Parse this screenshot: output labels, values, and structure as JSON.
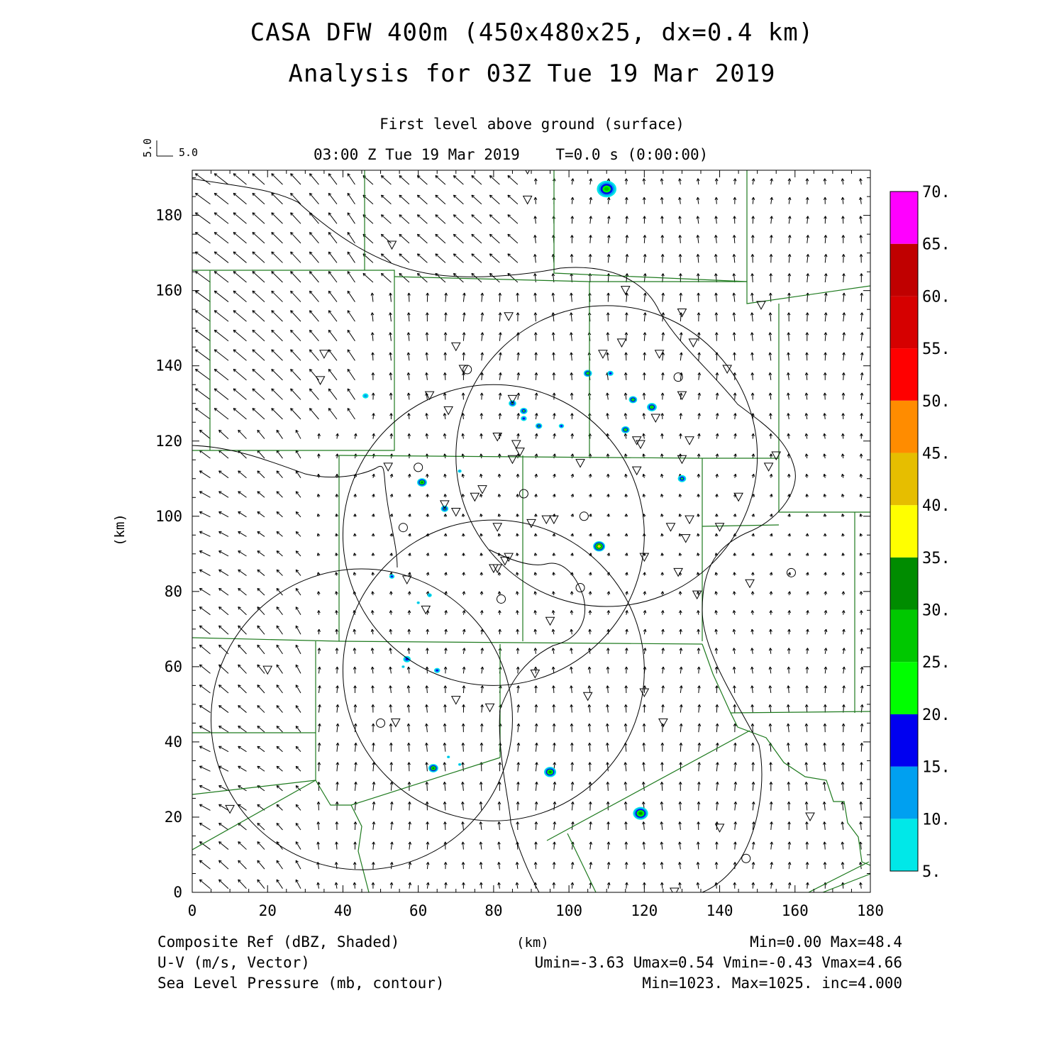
{
  "title": {
    "line1": "CASA DFW 400m (450x480x25, dx=0.4 km)",
    "line2": "Analysis for 03Z Tue 19 Mar 2019"
  },
  "subtitle": "First level above ground (surface)",
  "time_line": "03:00 Z Tue 19 Mar 2019    T=0.0 s (0:00:00)",
  "vector_key": {
    "u_label": "5.0",
    "v_label": "5.0"
  },
  "axes": {
    "x_label": "(km)",
    "y_label": "(km)",
    "x_ticks": [
      "0",
      "20",
      "40",
      "60",
      "80",
      "100",
      "120",
      "140",
      "160",
      "180"
    ],
    "y_ticks": [
      "0",
      "20",
      "40",
      "60",
      "80",
      "100",
      "120",
      "140",
      "160",
      "180"
    ],
    "x_range_km": [
      0,
      180
    ],
    "y_range_km": [
      0,
      192
    ]
  },
  "colorbar": {
    "labels": [
      "5.",
      "10.",
      "15.",
      "20.",
      "25.",
      "30.",
      "35.",
      "40.",
      "45.",
      "50.",
      "55.",
      "60.",
      "65.",
      "70."
    ],
    "colors": [
      "#00e8e8",
      "#00a0f0",
      "#0000f0",
      "#00ff00",
      "#00c800",
      "#008c00",
      "#ffff00",
      "#e6be00",
      "#ff8c00",
      "#ff0000",
      "#d60000",
      "#c00000",
      "#ff00ff"
    ]
  },
  "footer": {
    "left": [
      "Composite Ref (dBZ, Shaded)",
      "U-V (m/s, Vector)",
      "Sea Level Pressure (mb, contour)"
    ],
    "center": "(km)",
    "right": [
      "Min=0.00 Max=48.4",
      "Umin=-3.63 Umax=0.54 Vmin=-0.43 Vmax=4.66",
      "Min=1023. Max=1025. inc=4.000"
    ]
  },
  "colors": {
    "county_lines": "#1e7a1e",
    "contours": "#000000",
    "vectors": "#000000"
  },
  "map_data": {
    "radar_rings": [
      {
        "cx": 110,
        "cy": 116,
        "r": 40
      },
      {
        "cx": 80,
        "cy": 95,
        "r": 40
      },
      {
        "cx": 80,
        "cy": 59,
        "r": 40
      },
      {
        "cx": 45,
        "cy": 46,
        "r": 40
      }
    ],
    "stations_triangle": [
      [
        89,
        192
      ],
      [
        89,
        184
      ],
      [
        53,
        172
      ],
      [
        115,
        160
      ],
      [
        84,
        153
      ],
      [
        130,
        154
      ],
      [
        151,
        156
      ],
      [
        35,
        143
      ],
      [
        70,
        145
      ],
      [
        114,
        146
      ],
      [
        109,
        143
      ],
      [
        124,
        143
      ],
      [
        133,
        146
      ],
      [
        34,
        136
      ],
      [
        72,
        139
      ],
      [
        142,
        139
      ],
      [
        63,
        132
      ],
      [
        85,
        131
      ],
      [
        130,
        132
      ],
      [
        68,
        128
      ],
      [
        123,
        126
      ],
      [
        81,
        121
      ],
      [
        86,
        119
      ],
      [
        87,
        117
      ],
      [
        118,
        120
      ],
      [
        132,
        120
      ],
      [
        119,
        119
      ],
      [
        85,
        115
      ],
      [
        52,
        113
      ],
      [
        103,
        114
      ],
      [
        130,
        115
      ],
      [
        155,
        116
      ],
      [
        153,
        113
      ],
      [
        118,
        112
      ],
      [
        75,
        105
      ],
      [
        77,
        107
      ],
      [
        145,
        105
      ],
      [
        67,
        103
      ],
      [
        70,
        101
      ],
      [
        94,
        99
      ],
      [
        96,
        99
      ],
      [
        90,
        98
      ],
      [
        81,
        97
      ],
      [
        132,
        99
      ],
      [
        127,
        97
      ],
      [
        140,
        97
      ],
      [
        131,
        94
      ],
      [
        81,
        86
      ],
      [
        83,
        88
      ],
      [
        84,
        89
      ],
      [
        80,
        86
      ],
      [
        120,
        89
      ],
      [
        129,
        85
      ],
      [
        57,
        83
      ],
      [
        148,
        82
      ],
      [
        134,
        79
      ],
      [
        62,
        75
      ],
      [
        95,
        72
      ],
      [
        20,
        59
      ],
      [
        91,
        58
      ],
      [
        70,
        51
      ],
      [
        79,
        49
      ],
      [
        120,
        53
      ],
      [
        105,
        52
      ],
      [
        54,
        45
      ],
      [
        125,
        45
      ],
      [
        10,
        22
      ],
      [
        140,
        17
      ],
      [
        164,
        20
      ],
      [
        128,
        0
      ]
    ],
    "stations_circle": [
      [
        73,
        139
      ],
      [
        129,
        137
      ],
      [
        60,
        113
      ],
      [
        88,
        106
      ],
      [
        56,
        97
      ],
      [
        104,
        100
      ],
      [
        103,
        81
      ],
      [
        82,
        78
      ],
      [
        159,
        85
      ],
      [
        50,
        45
      ],
      [
        147,
        9
      ]
    ],
    "radar_echoes": [
      {
        "x": 110,
        "y": 187,
        "size": 2.6,
        "max_level": 4
      },
      {
        "x": 46,
        "y": 132,
        "size": 0.8,
        "max_level": 1
      },
      {
        "x": 105,
        "y": 138,
        "size": 1.1,
        "max_level": 4
      },
      {
        "x": 111,
        "y": 138,
        "size": 0.8,
        "max_level": 2
      },
      {
        "x": 85,
        "y": 130,
        "size": 1.0,
        "max_level": 3
      },
      {
        "x": 88,
        "y": 128,
        "size": 1.0,
        "max_level": 3
      },
      {
        "x": 88,
        "y": 126,
        "size": 0.8,
        "max_level": 2
      },
      {
        "x": 92,
        "y": 124,
        "size": 0.9,
        "max_level": 3
      },
      {
        "x": 98,
        "y": 124,
        "size": 0.7,
        "max_level": 2
      },
      {
        "x": 117,
        "y": 131,
        "size": 1.1,
        "max_level": 4
      },
      {
        "x": 122,
        "y": 129,
        "size": 1.3,
        "max_level": 4
      },
      {
        "x": 115,
        "y": 123,
        "size": 1.1,
        "max_level": 4
      },
      {
        "x": 61,
        "y": 109,
        "size": 1.3,
        "max_level": 5
      },
      {
        "x": 71,
        "y": 112,
        "size": 0.5,
        "max_level": 1
      },
      {
        "x": 67,
        "y": 102,
        "size": 1.0,
        "max_level": 3
      },
      {
        "x": 130,
        "y": 110,
        "size": 1.1,
        "max_level": 3
      },
      {
        "x": 108,
        "y": 92,
        "size": 1.6,
        "max_level": 7
      },
      {
        "x": 53,
        "y": 84,
        "size": 0.7,
        "max_level": 2
      },
      {
        "x": 63,
        "y": 79,
        "size": 0.6,
        "max_level": 1
      },
      {
        "x": 60,
        "y": 77,
        "size": 0.4,
        "max_level": 1
      },
      {
        "x": 57,
        "y": 62,
        "size": 1.0,
        "max_level": 2
      },
      {
        "x": 56,
        "y": 60,
        "size": 0.4,
        "max_level": 1
      },
      {
        "x": 65,
        "y": 59,
        "size": 0.8,
        "max_level": 2
      },
      {
        "x": 68,
        "y": 36,
        "size": 0.4,
        "max_level": 1
      },
      {
        "x": 71,
        "y": 34,
        "size": 0.4,
        "max_level": 1
      },
      {
        "x": 64,
        "y": 33,
        "size": 1.3,
        "max_level": 5
      },
      {
        "x": 95,
        "y": 32,
        "size": 1.6,
        "max_level": 5
      },
      {
        "x": 119,
        "y": 21,
        "size": 2.0,
        "max_level": 5
      }
    ]
  }
}
